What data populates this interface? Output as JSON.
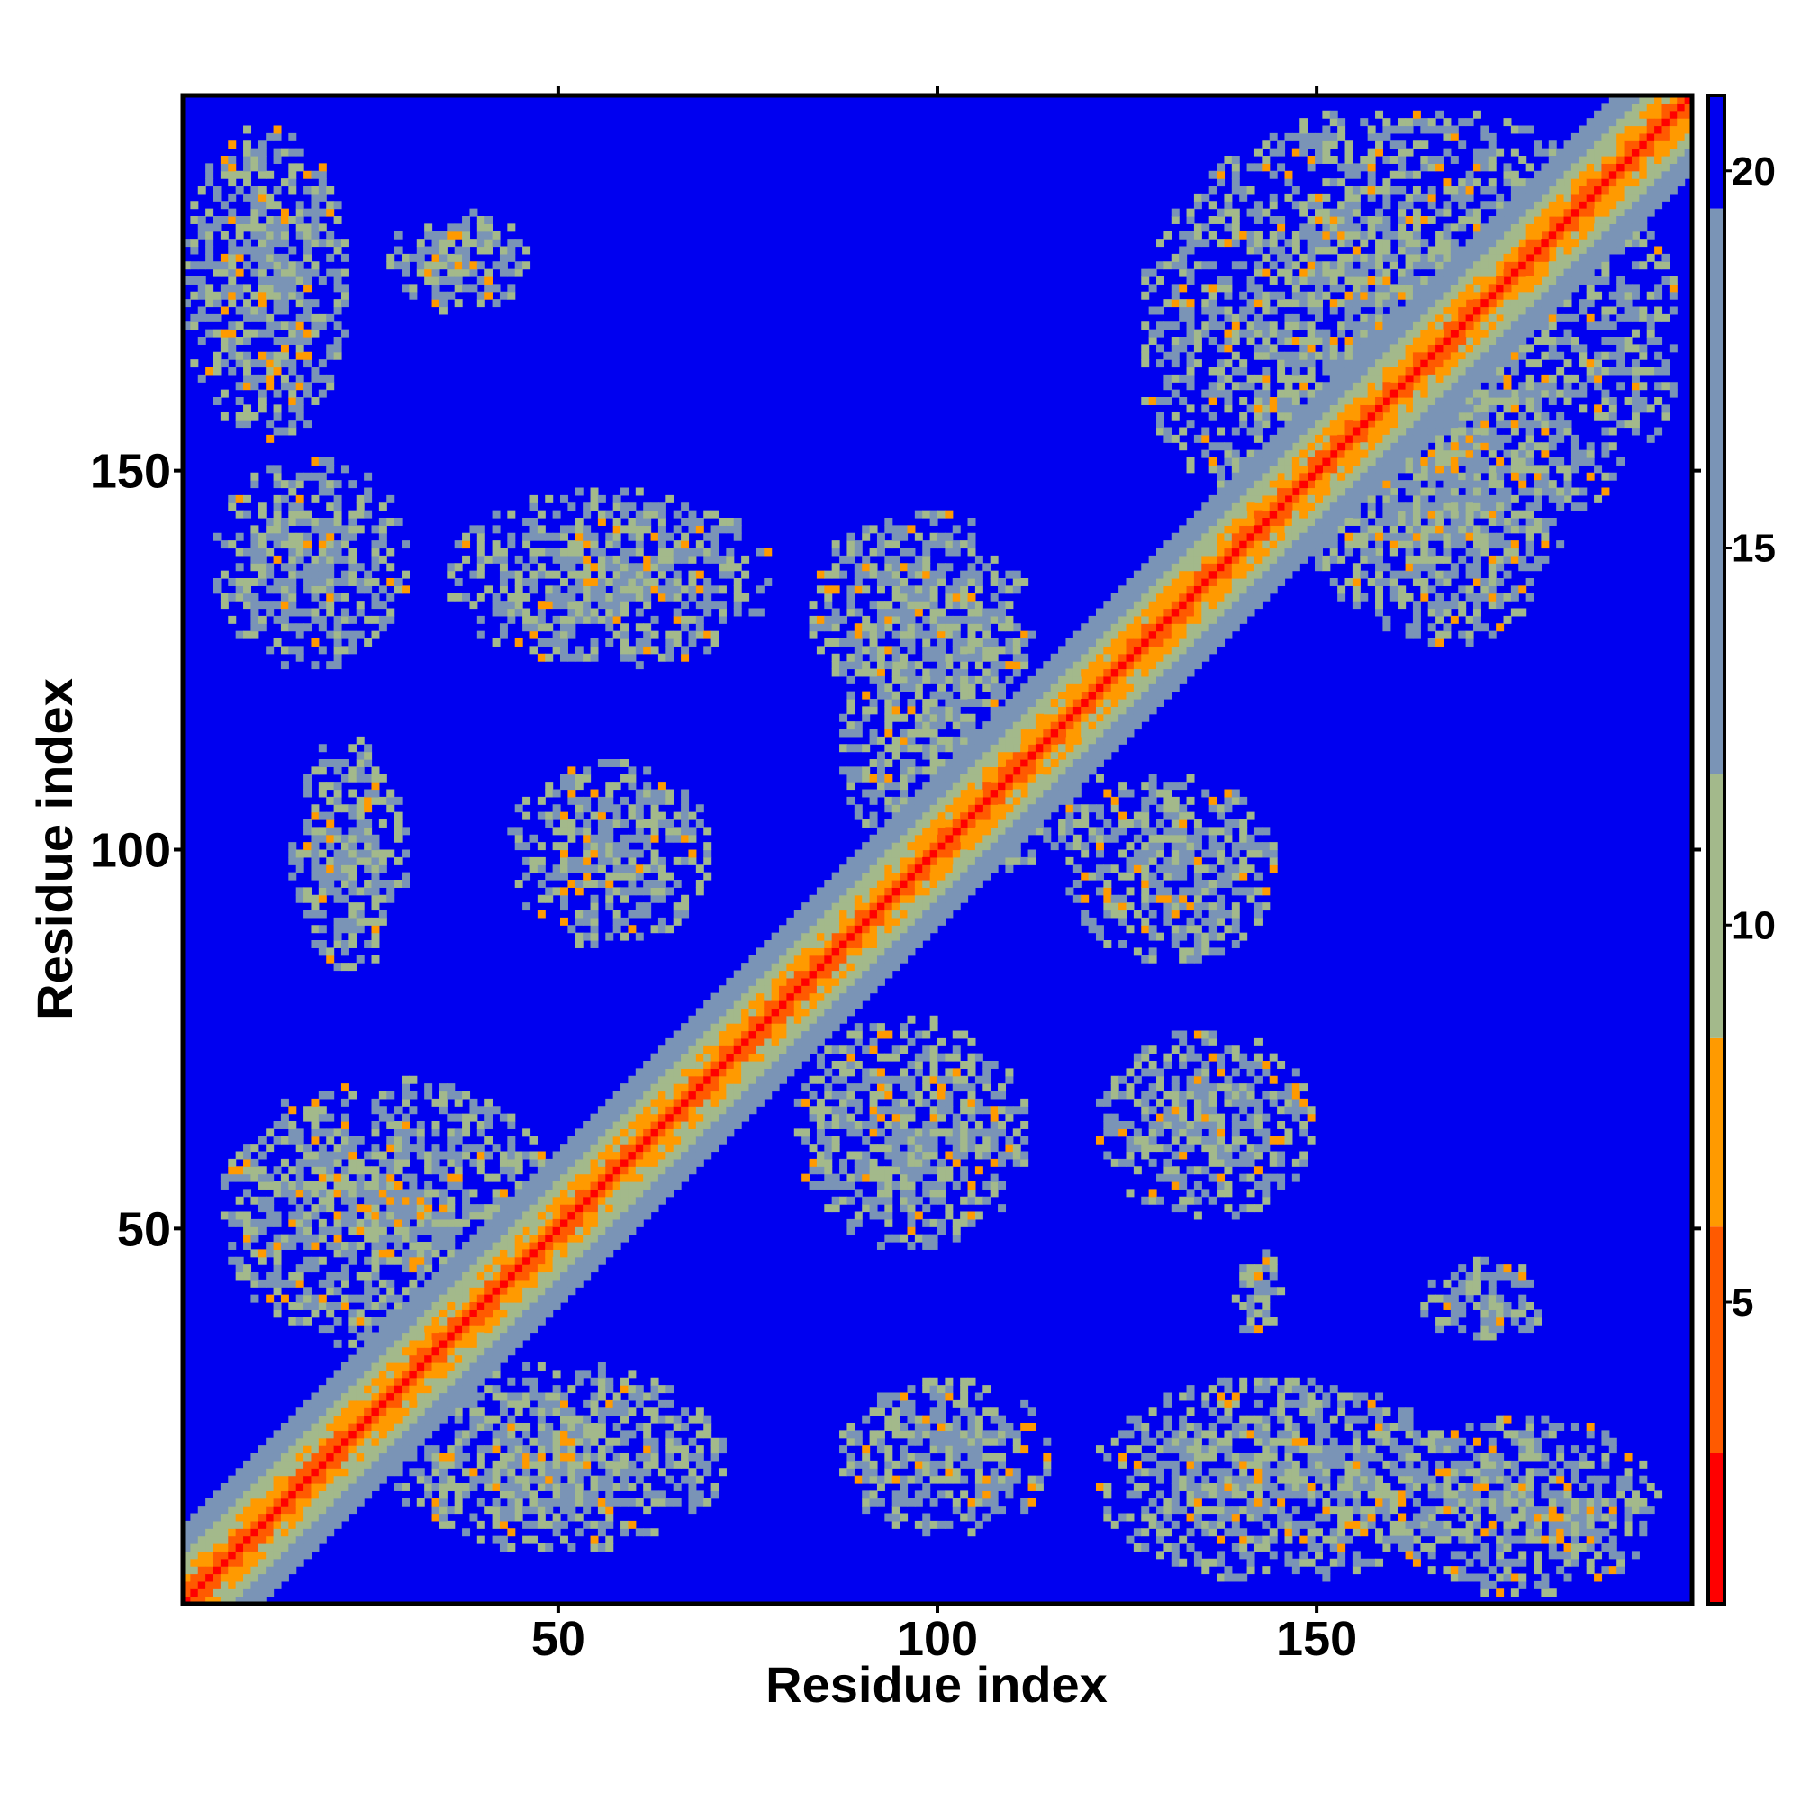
{
  "chart_data": {
    "type": "heatmap",
    "title": "",
    "xlabel": "Residue index",
    "ylabel": "Residue index",
    "n_residues": 200,
    "xlim": [
      0.5,
      199.5
    ],
    "ylim": [
      0.5,
      199.5
    ],
    "x_ticks": [
      50,
      100,
      150
    ],
    "y_ticks": [
      50,
      100,
      150
    ],
    "x_tick_labels": [
      "50",
      "100",
      "150"
    ],
    "y_tick_labels": [
      "50",
      "100",
      "150"
    ],
    "value_range": [
      1,
      21
    ],
    "colorbar": {
      "ticks": [
        5,
        10,
        15,
        20
      ],
      "tick_labels": [
        "5",
        "10",
        "15",
        "20"
      ],
      "bands": [
        {
          "min": 1,
          "max": 3,
          "color": "#ff0000"
        },
        {
          "min": 3,
          "max": 6,
          "color": "#ff5a00"
        },
        {
          "min": 6,
          "max": 8.5,
          "color": "#ff9a00"
        },
        {
          "min": 8.5,
          "max": 12,
          "color": "#a3b98b"
        },
        {
          "min": 12,
          "max": 19.5,
          "color": "#7a94b6"
        },
        {
          "min": 19.5,
          "max": 21,
          "color": "#0000f0"
        }
      ]
    },
    "background_color": "#0000f0",
    "diagonal": "symmetric distance matrix; minimum distance along the main diagonal",
    "contact_regions": [
      {
        "x": [
          1,
          22
        ],
        "y": [
          155,
          196
        ]
      },
      {
        "x": [
          5,
          30
        ],
        "y": [
          125,
          152
        ]
      },
      {
        "x": [
          28,
          46
        ],
        "y": [
          172,
          185
        ]
      },
      {
        "x": [
          36,
          78
        ],
        "y": [
          125,
          148
        ]
      },
      {
        "x": [
          15,
          30
        ],
        "y": [
          85,
          115
        ]
      },
      {
        "x": [
          44,
          70
        ],
        "y": [
          88,
          112
        ]
      },
      {
        "x": [
          84,
          112
        ],
        "y": [
          120,
          145
        ]
      },
      {
        "x": [
          88,
          122
        ],
        "y": [
          98,
          130
        ]
      },
      {
        "x": [
          118,
          145
        ],
        "y": [
          86,
          110
        ]
      },
      {
        "x": [
          6,
          50
        ],
        "y": [
          35,
          70
        ]
      },
      {
        "x": [
          28,
          72
        ],
        "y": [
          8,
          32
        ]
      },
      {
        "x": [
          82,
          112
        ],
        "y": [
          48,
          78
        ]
      },
      {
        "x": [
          122,
          150
        ],
        "y": [
          52,
          76
        ]
      },
      {
        "x": [
          140,
          146
        ],
        "y": [
          35,
          48
        ]
      },
      {
        "x": [
          88,
          115
        ],
        "y": [
          10,
          30
        ]
      },
      {
        "x": [
          122,
          168
        ],
        "y": [
          4,
          30
        ]
      },
      {
        "x": [
          160,
          196
        ],
        "y": [
          2,
          25
        ]
      },
      {
        "x": [
          164,
          182
        ],
        "y": [
          36,
          46
        ]
      },
      {
        "x": [
          128,
          198
        ],
        "y": [
          140,
          198
        ]
      },
      {
        "x": [
          150,
          183
        ],
        "y": [
          128,
          165
        ]
      }
    ]
  }
}
